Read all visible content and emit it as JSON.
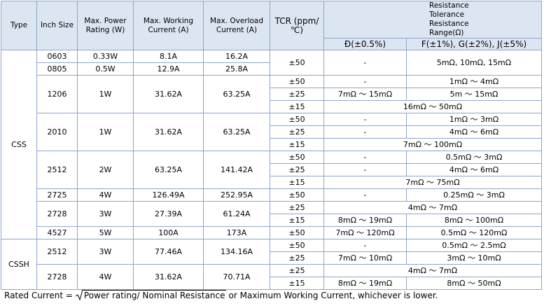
{
  "table": {
    "header": {
      "type": "Type",
      "size": "Inch Size",
      "power": "Max. Power Rating (W)",
      "working": "Max. Working Current (A)",
      "overload": "Max. Overload Current (A)",
      "tcr": "TCR (ppm/℃)",
      "tolerance": "Resistance Tolerance Resistance Range(Ω)",
      "d": "Đ(±0.5%)",
      "fgj": "F(±1%), G(±2%), J(±5%)"
    },
    "groups": [
      {
        "type": "CSS",
        "blocks": [
          {
            "parts": [
              {
                "size": "0603",
                "power": "0.33W",
                "working": "8.1A",
                "overload": "16.2A"
              },
              {
                "size": "0805",
                "power": "0.5W",
                "working": "12.9A",
                "overload": "25.8A"
              }
            ],
            "rows": [
              {
                "tcr": "±50",
                "d": "-",
                "fgj": "5mΩ, 10mΩ, 15mΩ"
              }
            ]
          },
          {
            "parts": [
              {
                "size": "1206",
                "power": "1W",
                "working": "31.62A",
                "overload": "63.25A"
              }
            ],
            "rows": [
              {
                "tcr": "±50",
                "d": "-",
                "fgj": "1mΩ ～ 4mΩ"
              },
              {
                "tcr": "±25",
                "d": "7mΩ ～ 15mΩ",
                "fgj": "5m ～ 15mΩ"
              },
              {
                "tcr": "±15",
                "range": "16mΩ ～ 50mΩ"
              }
            ]
          },
          {
            "parts": [
              {
                "size": "2010",
                "power": "1W",
                "working": "31.62A",
                "overload": "63.25A"
              }
            ],
            "rows": [
              {
                "tcr": "±50",
                "d": "-",
                "fgj": "1mΩ ～ 3mΩ"
              },
              {
                "tcr": "±25",
                "d": "-",
                "fgj": "4mΩ ～ 6mΩ"
              },
              {
                "tcr": "±15",
                "range": "7mΩ ～ 100mΩ"
              }
            ]
          },
          {
            "parts": [
              {
                "size": "2512",
                "power": "2W",
                "working": "63.25A",
                "overload": "141.42A"
              }
            ],
            "rows": [
              {
                "tcr": "±50",
                "d": "-",
                "fgj": "0.5mΩ ～ 3mΩ"
              },
              {
                "tcr": "±25",
                "d": "-",
                "fgj": "4mΩ ～ 6mΩ"
              },
              {
                "tcr": "±15",
                "range": "7mΩ ～ 75mΩ"
              }
            ]
          },
          {
            "parts": [
              {
                "size": "2725",
                "power": "4W",
                "working": "126.49A",
                "overload": "252.95A"
              }
            ],
            "rows": [
              {
                "tcr": "±50",
                "d": "-",
                "fgj": "0.25mΩ ～ 3mΩ"
              }
            ]
          },
          {
            "parts": [
              {
                "size": "2728",
                "power": "3W",
                "working": "27.39A",
                "overload": "61.24A"
              }
            ],
            "rows": [
              {
                "tcr": "±25",
                "range": "4mΩ ～ 7mΩ"
              },
              {
                "tcr": "±15",
                "d": "8mΩ ～ 19mΩ",
                "fgj": "8mΩ ～ 100mΩ"
              }
            ]
          },
          {
            "parts": [
              {
                "size": "4527",
                "power": "5W",
                "working": "100A",
                "overload": "173A"
              }
            ],
            "rows": [
              {
                "tcr": "±50",
                "d": "7mΩ ～ 120mΩ",
                "fgj": "0.5mΩ ～ 120mΩ"
              }
            ]
          }
        ]
      },
      {
        "type": "CSSH",
        "blocks": [
          {
            "parts": [
              {
                "size": "2512",
                "power": "3W",
                "working": "77.46A",
                "overload": "134.16A"
              }
            ],
            "rows": [
              {
                "tcr": "±50",
                "d": "-",
                "fgj": "0.5mΩ ～ 2.5mΩ"
              },
              {
                "tcr": "±25",
                "d": "7mΩ ～ 10mΩ",
                "fgj": "3mΩ ～ 10mΩ"
              }
            ]
          },
          {
            "parts": [
              {
                "size": "2728",
                "power": "4W",
                "working": "31.62A",
                "overload": "70.71A"
              }
            ],
            "rows": [
              {
                "tcr": "±25",
                "range": "4mΩ ～ 7mΩ"
              },
              {
                "tcr": "±15",
                "d": "8mΩ ～ 19mΩ",
                "fgj": "8mΩ ～ 50mΩ"
              }
            ]
          }
        ]
      }
    ]
  },
  "footnote": {
    "prefix": "Rated Current =",
    "radicand": "Power rating/ Nominal Resistance",
    "suffix": "or Maximum Working Current, whichever is lower."
  }
}
